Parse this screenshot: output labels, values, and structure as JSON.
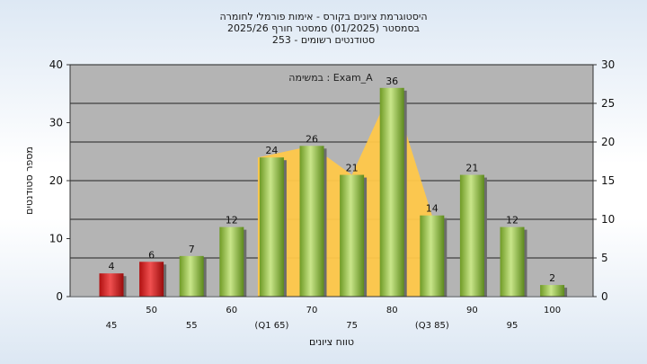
{
  "chart_data": {
    "type": "bar",
    "title_lines": [
      "היסטוגרמת ציונים בקורס - אימות פורמלי לחומרה",
      "בסמסטר  (01/2025)  סמסטר חורף 2025/26",
      "סטודנטים רשומים - 253"
    ],
    "xlabel": "טווח ציונים",
    "ylabel": "מספר סטודנטים",
    "annotation": "במשימה : Exam_A",
    "ylim": [
      0,
      40
    ],
    "y2lim": [
      0,
      30
    ],
    "yticks": [
      "0",
      "10",
      "20",
      "30",
      "40"
    ],
    "y2ticks": [
      "0",
      "5",
      "10",
      "15",
      "20",
      "25",
      "30"
    ],
    "x_tick_labels": [
      "45",
      "50",
      "55",
      "60",
      "(Q1 65)",
      "70",
      "75",
      "80",
      "(Q3 85)",
      "90",
      "95",
      "100"
    ],
    "values": [
      4,
      6,
      7,
      12,
      24,
      26,
      21,
      36,
      14,
      21,
      12,
      2
    ],
    "bar_colors": [
      "#d42020",
      "#d42020",
      "#8cbf3a",
      "#8cbf3a",
      "#8cbf3a",
      "#8cbf3a",
      "#8cbf3a",
      "#8cbf3a",
      "#8cbf3a",
      "#8cbf3a",
      "#8cbf3a",
      "#8cbf3a"
    ],
    "band": {
      "x_from": "(Q1 65)",
      "x_to": "(Q3 85)",
      "color": "#ffc84a"
    },
    "grid": true,
    "plot_background": "#b4b4b4"
  }
}
